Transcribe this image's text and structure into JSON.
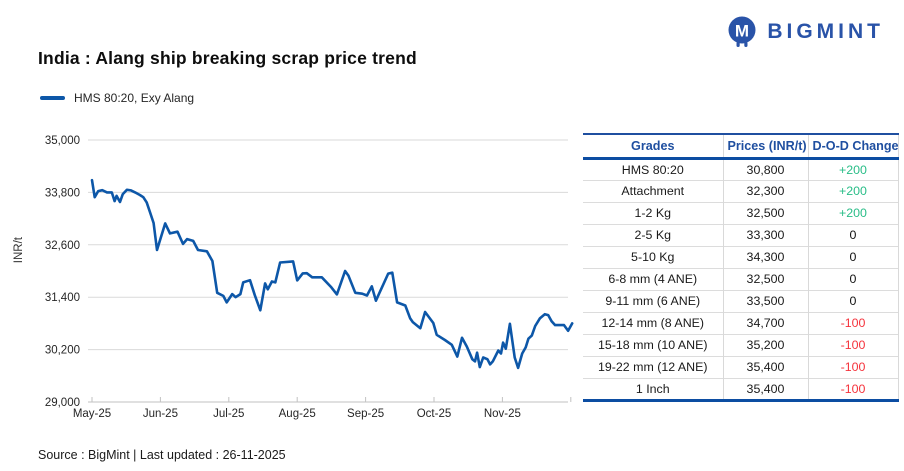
{
  "header": {
    "logo_text": "BIGMINT",
    "logo_icon": "bigmint-owl-m-icon"
  },
  "title": "India : Alang ship breaking scrap price trend",
  "legend": {
    "label": "HMS 80:20, Exy Alang"
  },
  "colors": {
    "brand_blue": "#2953A8",
    "table_header_blue": "#1F4FA0",
    "line_blue": "#0D57A8",
    "positive_green": "#28BD87",
    "negative_red": "#F5333C",
    "grid_gray": "#DADADA"
  },
  "chart_data": {
    "type": "line",
    "title": "India : Alang ship breaking scrap price trend",
    "xlabel": "",
    "ylabel": "INR/t",
    "ylim": [
      29000,
      35000
    ],
    "xlim_months": [
      0,
      7.1
    ],
    "grid": true,
    "legend_position": "top-left",
    "y_ticks": {
      "values": [
        35000,
        33800,
        32600,
        31400,
        30200,
        29000
      ],
      "labels": [
        "35,000",
        "33,800",
        "32,600",
        "31,400",
        "30,200",
        "29,000"
      ]
    },
    "x_ticks": {
      "labels": [
        "May-25",
        "Jun-25",
        "Jul-25",
        "Aug-25",
        "Sep-25",
        "Oct-25",
        "Nov-25"
      ],
      "positions": [
        0,
        1,
        2,
        3,
        4,
        5,
        6
      ],
      "tick_mark_positions": [
        0,
        1,
        2,
        3,
        4,
        5,
        6,
        7
      ]
    },
    "series": [
      {
        "name": "HMS 80:20, Exy Alang",
        "color": "#0D57A8",
        "points": [
          [
            0.0,
            34080
          ],
          [
            0.04,
            33690
          ],
          [
            0.09,
            33830
          ],
          [
            0.15,
            33850
          ],
          [
            0.22,
            33800
          ],
          [
            0.29,
            33800
          ],
          [
            0.33,
            33600
          ],
          [
            0.36,
            33720
          ],
          [
            0.41,
            33580
          ],
          [
            0.45,
            33760
          ],
          [
            0.51,
            33860
          ],
          [
            0.57,
            33845
          ],
          [
            0.63,
            33800
          ],
          [
            0.7,
            33740
          ],
          [
            0.75,
            33690
          ],
          [
            0.8,
            33570
          ],
          [
            0.85,
            33340
          ],
          [
            0.9,
            33100
          ],
          [
            0.95,
            32480
          ],
          [
            1.07,
            33090
          ],
          [
            1.14,
            32860
          ],
          [
            1.25,
            32900
          ],
          [
            1.33,
            32620
          ],
          [
            1.39,
            32730
          ],
          [
            1.48,
            32690
          ],
          [
            1.55,
            32480
          ],
          [
            1.68,
            32450
          ],
          [
            1.76,
            32230
          ],
          [
            1.83,
            31500
          ],
          [
            1.92,
            31430
          ],
          [
            1.97,
            31280
          ],
          [
            2.05,
            31470
          ],
          [
            2.1,
            31400
          ],
          [
            2.17,
            31470
          ],
          [
            2.21,
            31740
          ],
          [
            2.31,
            31790
          ],
          [
            2.38,
            31445
          ],
          [
            2.46,
            31100
          ],
          [
            2.53,
            31715
          ],
          [
            2.57,
            31580
          ],
          [
            2.63,
            31760
          ],
          [
            2.68,
            31740
          ],
          [
            2.75,
            32195
          ],
          [
            2.94,
            32220
          ],
          [
            3.0,
            31785
          ],
          [
            3.08,
            31945
          ],
          [
            3.14,
            31950
          ],
          [
            3.22,
            31855
          ],
          [
            3.36,
            31855
          ],
          [
            3.5,
            31625
          ],
          [
            3.58,
            31465
          ],
          [
            3.7,
            32000
          ],
          [
            3.75,
            31890
          ],
          [
            3.85,
            31500
          ],
          [
            3.95,
            31480
          ],
          [
            4.02,
            31440
          ],
          [
            4.09,
            31650
          ],
          [
            4.15,
            31320
          ],
          [
            4.33,
            31940
          ],
          [
            4.39,
            31960
          ],
          [
            4.46,
            31280
          ],
          [
            4.58,
            31210
          ],
          [
            4.65,
            30920
          ],
          [
            4.69,
            30830
          ],
          [
            4.8,
            30690
          ],
          [
            4.87,
            31060
          ],
          [
            4.99,
            30810
          ],
          [
            5.04,
            30540
          ],
          [
            5.16,
            30420
          ],
          [
            5.26,
            30310
          ],
          [
            5.34,
            30040
          ],
          [
            5.41,
            30470
          ],
          [
            5.48,
            30270
          ],
          [
            5.56,
            29980
          ],
          [
            5.6,
            29930
          ],
          [
            5.63,
            30130
          ],
          [
            5.67,
            29800
          ],
          [
            5.72,
            30020
          ],
          [
            5.78,
            29980
          ],
          [
            5.82,
            29860
          ],
          [
            5.86,
            29930
          ],
          [
            5.94,
            30180
          ],
          [
            5.98,
            30110
          ],
          [
            6.01,
            30360
          ],
          [
            6.05,
            30220
          ],
          [
            6.11,
            30790
          ],
          [
            6.18,
            30020
          ],
          [
            6.23,
            29780
          ],
          [
            6.29,
            30110
          ],
          [
            6.34,
            30250
          ],
          [
            6.38,
            30450
          ],
          [
            6.43,
            30520
          ],
          [
            6.48,
            30740
          ],
          [
            6.55,
            30920
          ],
          [
            6.62,
            31010
          ],
          [
            6.67,
            30990
          ],
          [
            6.72,
            30850
          ],
          [
            6.77,
            30760
          ],
          [
            6.9,
            30760
          ],
          [
            6.96,
            30630
          ],
          [
            7.02,
            30800
          ]
        ]
      }
    ]
  },
  "table": {
    "headers": [
      "Grades",
      "Prices (INR/t)",
      "D-O-D Change"
    ],
    "rows": [
      {
        "grade": "HMS 80:20",
        "price": "30,800",
        "change": "+200"
      },
      {
        "grade": "Attachment",
        "price": "32,300",
        "change": "+200"
      },
      {
        "grade": "1-2 Kg",
        "price": "32,500",
        "change": "+200"
      },
      {
        "grade": "2-5 Kg",
        "price": "33,300",
        "change": "0"
      },
      {
        "grade": "5-10 Kg",
        "price": "34,300",
        "change": "0"
      },
      {
        "grade": "6-8 mm (4 ANE)",
        "price": "32,500",
        "change": "0"
      },
      {
        "grade": "9-11 mm (6 ANE)",
        "price": "33,500",
        "change": "0"
      },
      {
        "grade": "12-14 mm (8 ANE)",
        "price": "34,700",
        "change": "-100"
      },
      {
        "grade": "15-18 mm (10 ANE)",
        "price": "35,200",
        "change": "-100"
      },
      {
        "grade": "19-22 mm (12 ANE)",
        "price": "35,400",
        "change": "-100"
      },
      {
        "grade": "1 Inch",
        "price": "35,400",
        "change": "-100"
      }
    ]
  },
  "footer": {
    "source": "Source : BigMint | Last updated : 26-11-2025"
  }
}
